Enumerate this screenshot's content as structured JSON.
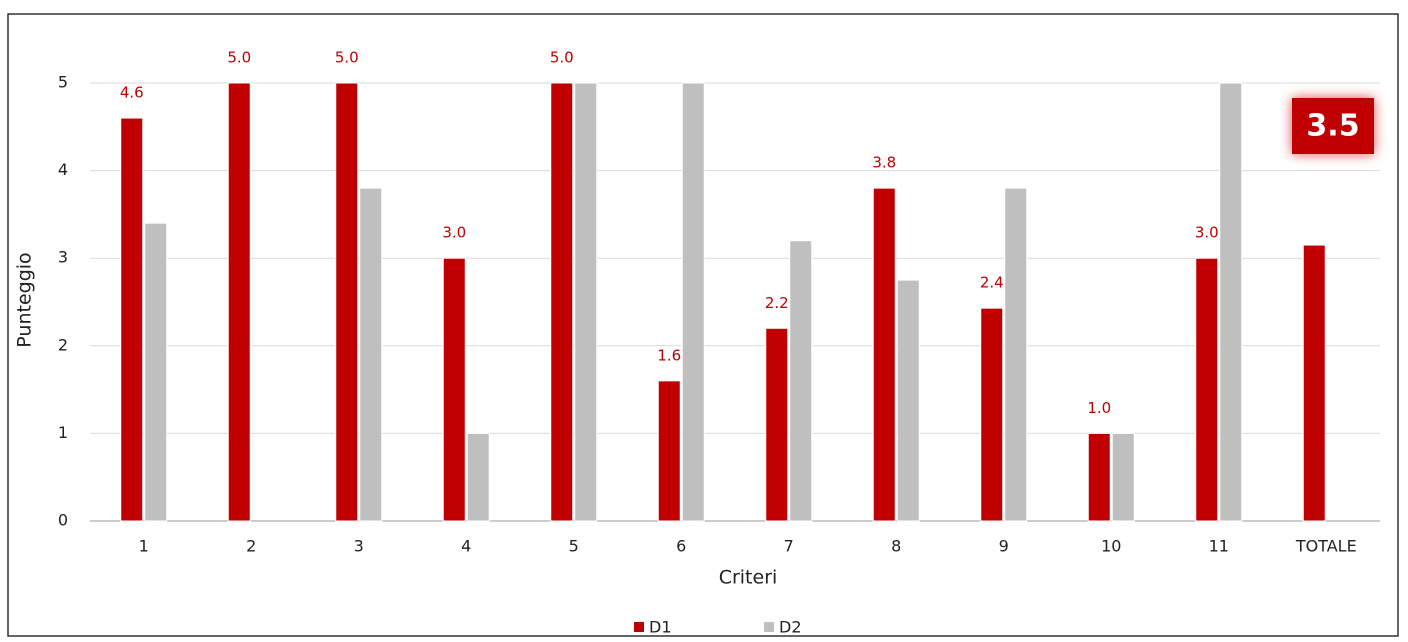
{
  "chart_data": {
    "type": "bar",
    "x_label": "Criteri",
    "y_label": "Punteggio",
    "annotation": "3.5",
    "categories": [
      "1",
      "2",
      "3",
      "4",
      "5",
      "6",
      "7",
      "8",
      "9",
      "10",
      "11",
      "TOTALE"
    ],
    "series": [
      {
        "name": "D1",
        "color": "#c00000",
        "values": [
          4.6,
          5,
          5,
          3,
          5,
          1.6,
          2.2,
          3.8,
          2.43,
          1,
          3,
          3.15
        ],
        "value_labels": [
          "4.6",
          "5.0",
          "5.0",
          "3.0",
          "5.0",
          "1.6",
          "2.2",
          "3.8",
          "2.4",
          "1.0",
          "3.0",
          null
        ]
      },
      {
        "name": "D2",
        "color": "#bfbfbf",
        "values": [
          3.4,
          null,
          3.8,
          1,
          5,
          5,
          3.2,
          2.75,
          3.8,
          1,
          5,
          null
        ]
      }
    ],
    "ylim": [
      0,
      5
    ],
    "yticks": [
      0,
      1,
      2,
      3,
      4,
      5
    ],
    "grid": true
  }
}
